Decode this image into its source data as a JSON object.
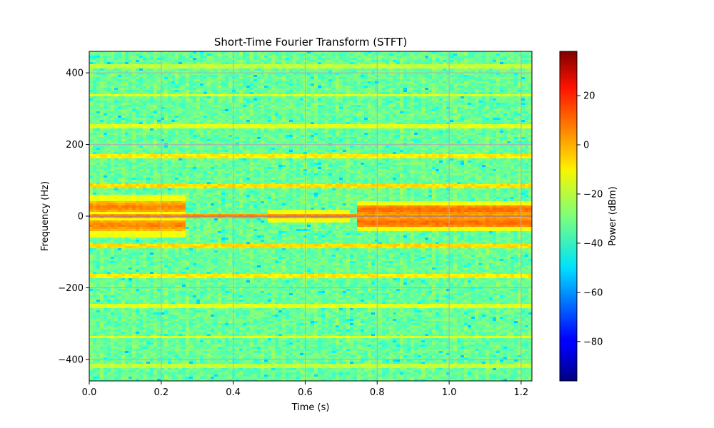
{
  "chart_data": {
    "type": "heatmap",
    "title": "Short-Time Fourier Transform (STFT)",
    "xlabel": "Time (s)",
    "ylabel": "Frequency (Hz)",
    "xlim": [
      0,
      1.23
    ],
    "ylim": [
      -460,
      460
    ],
    "xticks": [
      0.0,
      0.2,
      0.4,
      0.6,
      0.8,
      1.0,
      1.2
    ],
    "xtick_labels": [
      "0.0",
      "0.2",
      "0.4",
      "0.6",
      "0.8",
      "1.0",
      "1.2"
    ],
    "yticks": [
      400,
      200,
      0,
      -200,
      -400
    ],
    "ytick_labels": [
      "400",
      "200",
      "0",
      "−200",
      "−400"
    ],
    "grid": true,
    "colormap": "jet",
    "colorbar": {
      "label": "Power (dBm)",
      "range": [
        -96,
        38
      ],
      "ticks": [
        20,
        0,
        -20,
        -40,
        -60,
        -80
      ],
      "tick_labels": [
        "20",
        "0",
        "−20",
        "−40",
        "−60",
        "−80"
      ]
    },
    "background_level_dbm": -33,
    "carrier": {
      "frequency_hz": 0,
      "level_dbm": 30
    },
    "harmonic_lines": [
      {
        "frequency_hz": 85,
        "level_dbm": -8
      },
      {
        "frequency_hz": -85,
        "level_dbm": -8
      },
      {
        "frequency_hz": 168,
        "level_dbm": -10
      },
      {
        "frequency_hz": -168,
        "level_dbm": -10
      },
      {
        "frequency_hz": 253,
        "level_dbm": -16
      },
      {
        "frequency_hz": -253,
        "level_dbm": -16
      },
      {
        "frequency_hz": 337,
        "level_dbm": -16
      },
      {
        "frequency_hz": -337,
        "level_dbm": -16
      },
      {
        "frequency_hz": 420,
        "level_dbm": -20
      },
      {
        "frequency_hz": -420,
        "level_dbm": -20
      }
    ],
    "sidebands": [
      {
        "t_start": 0.0,
        "t_end": 0.27,
        "frequency_hz": 25,
        "width_hz": 14,
        "level_dbm": 5
      },
      {
        "t_start": 0.0,
        "t_end": 0.27,
        "frequency_hz": -25,
        "width_hz": 14,
        "level_dbm": 5
      },
      {
        "t_start": 0.5,
        "t_end": 0.72,
        "frequency_hz": 0,
        "width_hz": 8,
        "level_dbm": 2
      },
      {
        "t_start": 0.74,
        "t_end": 1.23,
        "frequency_hz": 18,
        "width_hz": 10,
        "level_dbm": 8
      },
      {
        "t_start": 0.74,
        "t_end": 1.23,
        "frequency_hz": -18,
        "width_hz": 10,
        "level_dbm": 8
      }
    ]
  }
}
